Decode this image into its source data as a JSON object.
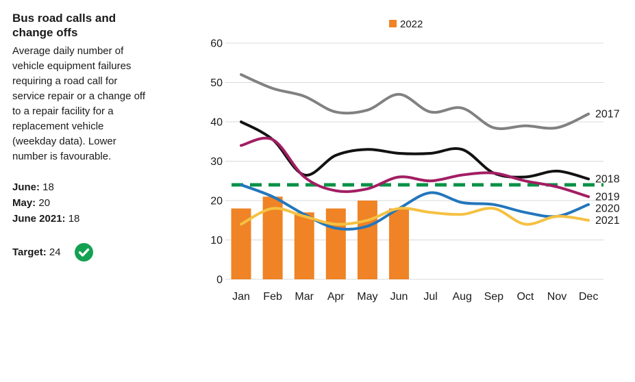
{
  "sidebar": {
    "title": "Bus road calls and\nchange offs",
    "description": "Average daily number of\nvehicle equipment failures\nrequiring a road call for\nservice repair or a change off\nto a repair facility for a\nreplacement vehicle\n(weekday data). Lower\nnumber is favourable.",
    "stats": [
      {
        "label": "June:",
        "value": "18"
      },
      {
        "label": "May:",
        "value": "20"
      },
      {
        "label": "June 2021:",
        "value": "18"
      }
    ],
    "target": {
      "label": "Target:",
      "value": "24"
    },
    "target_met_icon": "check-circle",
    "target_met_color": "#12A150"
  },
  "chart_data": {
    "type": "bar+line combo",
    "categories": [
      "Jan",
      "Feb",
      "Mar",
      "Apr",
      "May",
      "Jun",
      "Jul",
      "Aug",
      "Sep",
      "Oct",
      "Nov",
      "Dec"
    ],
    "legend": {
      "label": "2022",
      "position": "top-center"
    },
    "bar_series": {
      "name": "2022",
      "color": "#EF8325",
      "values": [
        18,
        21,
        17,
        18,
        20,
        18,
        null,
        null,
        null,
        null,
        null,
        null
      ]
    },
    "line_series": [
      {
        "name": "2017",
        "color": "#818181",
        "values": [
          52,
          48.5,
          46.5,
          42.5,
          43,
          47,
          42.5,
          43.5,
          38.5,
          39,
          38.5,
          42
        ]
      },
      {
        "name": "2018",
        "color": "#121212",
        "values": [
          40,
          35.5,
          26.5,
          31.5,
          33,
          32,
          32,
          33,
          27,
          26,
          27.5,
          25.5
        ]
      },
      {
        "name": "2019",
        "color": "#A21E63",
        "values": [
          34,
          35.5,
          26,
          22.5,
          23,
          26,
          25,
          26.5,
          27,
          25,
          23.5,
          21
        ]
      },
      {
        "name": "2020",
        "color": "#2376BC",
        "values": [
          24,
          21,
          16.5,
          13,
          13.5,
          18,
          22,
          19.5,
          19,
          17,
          16,
          19
        ]
      },
      {
        "name": "2021",
        "color": "#F5C142",
        "values": [
          14,
          18,
          16,
          14,
          15,
          18,
          17,
          16.5,
          18,
          14,
          16,
          15
        ]
      }
    ],
    "target_line": {
      "value": 24,
      "color": "#089247",
      "style": "dashed"
    },
    "ylabel": "",
    "xlabel": "",
    "ylim": [
      0,
      60
    ],
    "yticks": [
      0,
      10,
      20,
      30,
      40,
      50,
      60
    ],
    "grid": "horizontal",
    "grid_color": "#d9d9d9"
  }
}
